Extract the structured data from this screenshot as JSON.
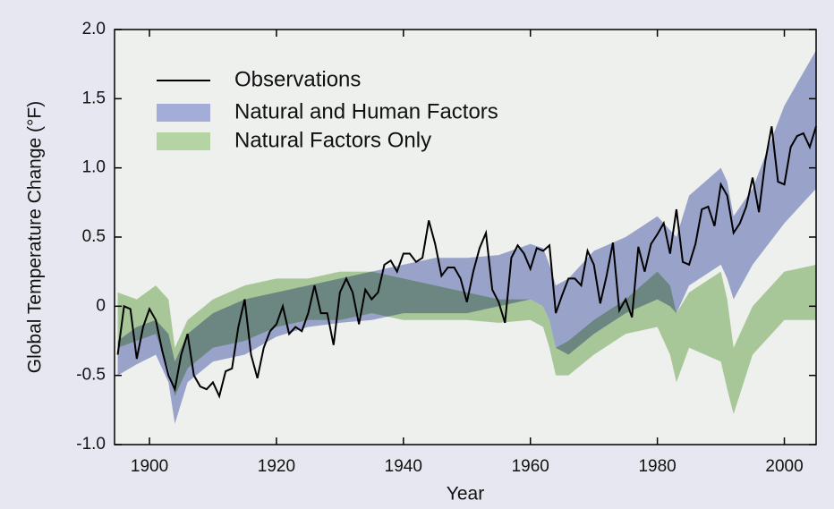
{
  "chart_data": {
    "type": "line",
    "xlabel": "Year",
    "ylabel": "Global Temperature Change (°F)",
    "xlim": [
      1894.5,
      2005
    ],
    "ylim": [
      -1,
      2
    ],
    "xticks": [
      1900,
      1920,
      1940,
      1960,
      1980,
      2000
    ],
    "yticks": [
      {
        "value": 2,
        "label": "2.0"
      },
      1.5,
      {
        "value": 1,
        "label": "1.0"
      },
      0.5,
      0,
      -0.5,
      {
        "value": -1,
        "label": "-1.0"
      }
    ],
    "legend": "upper left",
    "x": [
      1895,
      1896,
      1897,
      1898,
      1899,
      1900,
      1901,
      1902,
      1903,
      1904,
      1905,
      1906,
      1907,
      1908,
      1909,
      1910,
      1911,
      1912,
      1913,
      1914,
      1915,
      1916,
      1917,
      1918,
      1919,
      1920,
      1921,
      1922,
      1923,
      1924,
      1925,
      1926,
      1927,
      1928,
      1929,
      1930,
      1931,
      1932,
      1933,
      1934,
      1935,
      1936,
      1937,
      1938,
      1939,
      1940,
      1941,
      1942,
      1943,
      1944,
      1945,
      1946,
      1947,
      1948,
      1949,
      1950,
      1951,
      1952,
      1953,
      1954,
      1955,
      1956,
      1957,
      1958,
      1959,
      1960,
      1961,
      1962,
      1963,
      1964,
      1965,
      1966,
      1967,
      1968,
      1969,
      1970,
      1971,
      1972,
      1973,
      1974,
      1975,
      1976,
      1977,
      1978,
      1979,
      1980,
      1981,
      1982,
      1983,
      1984,
      1985,
      1986,
      1987,
      1988,
      1989,
      1990,
      1991,
      1992,
      1993,
      1994,
      1995,
      1996,
      1997,
      1998,
      1999,
      2000,
      2001,
      2002,
      2003,
      2004,
      2005
    ],
    "series": [
      {
        "name": "Observations",
        "color": "#000000",
        "values": [
          -0.35,
          0.0,
          -0.02,
          -0.38,
          -0.15,
          -0.02,
          -0.1,
          -0.32,
          -0.5,
          -0.6,
          -0.35,
          -0.2,
          -0.5,
          -0.58,
          -0.6,
          -0.55,
          -0.65,
          -0.47,
          -0.45,
          -0.15,
          0.05,
          -0.35,
          -0.52,
          -0.3,
          -0.18,
          -0.13,
          0.0,
          -0.2,
          -0.15,
          -0.18,
          -0.05,
          0.15,
          -0.05,
          -0.05,
          -0.28,
          0.1,
          0.2,
          0.1,
          -0.13,
          0.12,
          0.05,
          0.1,
          0.3,
          0.33,
          0.25,
          0.38,
          0.38,
          0.32,
          0.35,
          0.62,
          0.45,
          0.22,
          0.28,
          0.28,
          0.2,
          0.03,
          0.25,
          0.42,
          0.53,
          0.12,
          0.03,
          -0.12,
          0.35,
          0.44,
          0.38,
          0.27,
          0.42,
          0.4,
          0.44,
          -0.05,
          0.08,
          0.2,
          0.2,
          0.15,
          0.4,
          0.3,
          0.02,
          0.22,
          0.46,
          -0.03,
          0.05,
          -0.08,
          0.43,
          0.25,
          0.45,
          0.52,
          0.6,
          0.38,
          0.7,
          0.32,
          0.3,
          0.45,
          0.7,
          0.72,
          0.58,
          0.88,
          0.8,
          0.53,
          0.6,
          0.72,
          0.93,
          0.68,
          1.05,
          1.3,
          0.9,
          0.88,
          1.15,
          1.23,
          1.25,
          1.15,
          1.3
        ]
      },
      {
        "name": "Natural and Human Factors",
        "color": "#a4acd8",
        "x": [
          1895,
          1898,
          1901,
          1903,
          1904,
          1906,
          1910,
          1915,
          1920,
          1925,
          1930,
          1935,
          1940,
          1945,
          1950,
          1955,
          1960,
          1962,
          1963,
          1964,
          1966,
          1970,
          1975,
          1980,
          1982,
          1983,
          1985,
          1990,
          1991,
          1992,
          1995,
          2000,
          2005
        ],
        "lower": [
          -0.5,
          -0.42,
          -0.35,
          -0.55,
          -0.85,
          -0.55,
          -0.4,
          -0.35,
          -0.22,
          -0.15,
          -0.12,
          -0.1,
          -0.05,
          -0.05,
          -0.05,
          0.0,
          0.05,
          0.0,
          -0.1,
          -0.3,
          -0.35,
          -0.2,
          -0.05,
          0.05,
          0.0,
          -0.05,
          0.15,
          0.3,
          0.2,
          0.05,
          0.3,
          0.6,
          0.85
        ],
        "upper": [
          -0.25,
          -0.15,
          -0.1,
          -0.2,
          -0.4,
          -0.2,
          -0.05,
          0.05,
          0.1,
          0.15,
          0.2,
          0.25,
          0.3,
          0.35,
          0.35,
          0.37,
          0.45,
          0.42,
          0.3,
          0.15,
          0.2,
          0.4,
          0.5,
          0.65,
          0.55,
          0.5,
          0.8,
          1.0,
          0.9,
          0.65,
          0.85,
          1.45,
          1.85
        ]
      },
      {
        "name": "Natural Factors Only",
        "color": "#b4d4a4",
        "x": [
          1895,
          1898,
          1901,
          1903,
          1904,
          1906,
          1910,
          1915,
          1920,
          1925,
          1930,
          1935,
          1940,
          1945,
          1950,
          1955,
          1960,
          1962,
          1963,
          1964,
          1966,
          1970,
          1975,
          1980,
          1982,
          1983,
          1985,
          1990,
          1991,
          1992,
          1995,
          2000,
          2005
        ],
        "lower": [
          -0.3,
          -0.25,
          -0.2,
          -0.45,
          -0.65,
          -0.45,
          -0.3,
          -0.25,
          -0.15,
          -0.1,
          -0.1,
          -0.05,
          -0.1,
          -0.1,
          -0.1,
          -0.12,
          -0.1,
          -0.15,
          -0.3,
          -0.5,
          -0.5,
          -0.35,
          -0.2,
          -0.15,
          -0.35,
          -0.55,
          -0.3,
          -0.4,
          -0.6,
          -0.78,
          -0.35,
          -0.1,
          -0.1
        ],
        "upper": [
          0.1,
          0.05,
          0.15,
          0.05,
          -0.3,
          -0.1,
          0.05,
          0.15,
          0.2,
          0.2,
          0.25,
          0.25,
          0.2,
          0.15,
          0.1,
          0.05,
          0.05,
          0.0,
          -0.1,
          -0.3,
          -0.25,
          -0.1,
          0.05,
          0.25,
          0.15,
          -0.05,
          0.1,
          0.25,
          0.05,
          -0.3,
          0.0,
          0.25,
          0.3
        ]
      }
    ]
  }
}
